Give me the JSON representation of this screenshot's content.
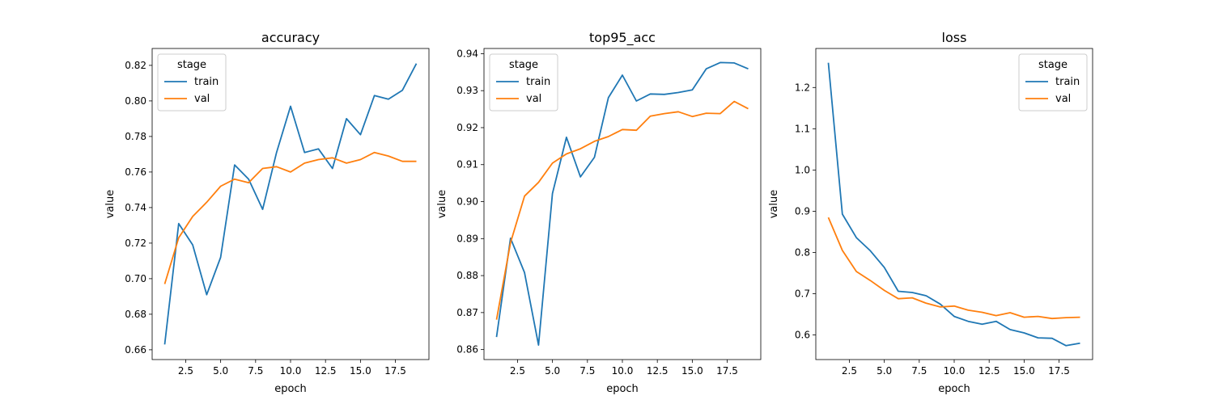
{
  "chart_data": [
    {
      "type": "line",
      "title": "accuracy",
      "xlabel": "epoch",
      "ylabel": "value",
      "xlim": [
        0.1,
        19.9
      ],
      "ylim": [
        0.6545,
        0.8295
      ],
      "xticks": [
        "2.5",
        "5.0",
        "7.5",
        "10.0",
        "12.5",
        "15.0",
        "17.5"
      ],
      "yticks": [
        "0.66",
        "0.68",
        "0.70",
        "0.72",
        "0.74",
        "0.76",
        "0.78",
        "0.80",
        "0.82"
      ],
      "legend": {
        "title": "stage",
        "placement": "upper-left"
      },
      "x": [
        1,
        2,
        3,
        4,
        5,
        6,
        7,
        8,
        9,
        10,
        11,
        12,
        13,
        14,
        15,
        16,
        17,
        18,
        19
      ],
      "series": [
        {
          "name": "train",
          "color": "#1f77b4",
          "values": [
            0.663,
            0.731,
            0.719,
            0.691,
            0.712,
            0.764,
            0.756,
            0.739,
            0.771,
            0.797,
            0.771,
            0.773,
            0.762,
            0.79,
            0.781,
            0.803,
            0.801,
            0.806,
            0.821
          ]
        },
        {
          "name": "val",
          "color": "#ff7f0e",
          "values": [
            0.697,
            0.723,
            0.735,
            0.743,
            0.752,
            0.756,
            0.754,
            0.762,
            0.763,
            0.76,
            0.765,
            0.767,
            0.768,
            0.765,
            0.767,
            0.771,
            0.769,
            0.766,
            0.766
          ]
        }
      ]
    },
    {
      "type": "line",
      "title": "top95_acc",
      "xlabel": "epoch",
      "ylabel": "value",
      "xlim": [
        0.1,
        19.9
      ],
      "ylim": [
        0.8573,
        0.9414
      ],
      "xticks": [
        "2.5",
        "5.0",
        "7.5",
        "10.0",
        "12.5",
        "15.0",
        "17.5"
      ],
      "yticks": [
        "0.86",
        "0.87",
        "0.88",
        "0.89",
        "0.90",
        "0.91",
        "0.92",
        "0.93",
        "0.94"
      ],
      "legend": {
        "title": "stage",
        "placement": "upper-left"
      },
      "x": [
        1,
        2,
        3,
        4,
        5,
        6,
        7,
        8,
        9,
        10,
        11,
        12,
        13,
        14,
        15,
        16,
        17,
        18,
        19
      ],
      "series": [
        {
          "name": "train",
          "color": "#1f77b4",
          "values": [
            0.8634,
            0.8901,
            0.8808,
            0.8612,
            0.9022,
            0.9174,
            0.9067,
            0.912,
            0.9281,
            0.9342,
            0.9272,
            0.9291,
            0.929,
            0.9295,
            0.9302,
            0.9359,
            0.9376,
            0.9375,
            0.9359
          ]
        },
        {
          "name": "val",
          "color": "#ff7f0e",
          "values": [
            0.8681,
            0.8889,
            0.9015,
            0.9052,
            0.9104,
            0.9129,
            0.9143,
            0.9163,
            0.9176,
            0.9195,
            0.9193,
            0.9231,
            0.9238,
            0.9243,
            0.923,
            0.9239,
            0.9238,
            0.9271,
            0.9251
          ]
        }
      ]
    },
    {
      "type": "line",
      "title": "loss",
      "xlabel": "epoch",
      "ylabel": "value",
      "xlim": [
        0.1,
        19.9
      ],
      "ylim": [
        0.5404,
        1.2946
      ],
      "xticks": [
        "2.5",
        "5.0",
        "7.5",
        "10.0",
        "12.5",
        "15.0",
        "17.5"
      ],
      "yticks": [
        "0.6",
        "0.7",
        "0.8",
        "0.9",
        "1.0",
        "1.1",
        "1.2"
      ],
      "legend": {
        "title": "stage",
        "placement": "upper-right"
      },
      "x": [
        1,
        2,
        3,
        4,
        5,
        6,
        7,
        8,
        9,
        10,
        11,
        12,
        13,
        14,
        15,
        16,
        17,
        18,
        19
      ],
      "series": [
        {
          "name": "train",
          "color": "#1f77b4",
          "values": [
            1.26,
            0.893,
            0.836,
            0.804,
            0.764,
            0.706,
            0.703,
            0.695,
            0.675,
            0.645,
            0.633,
            0.626,
            0.633,
            0.613,
            0.605,
            0.593,
            0.592,
            0.574,
            0.58
          ]
        },
        {
          "name": "val",
          "color": "#ff7f0e",
          "values": [
            0.885,
            0.805,
            0.754,
            0.732,
            0.708,
            0.688,
            0.69,
            0.677,
            0.668,
            0.67,
            0.66,
            0.655,
            0.647,
            0.654,
            0.643,
            0.645,
            0.64,
            0.642,
            0.643
          ]
        }
      ]
    }
  ]
}
